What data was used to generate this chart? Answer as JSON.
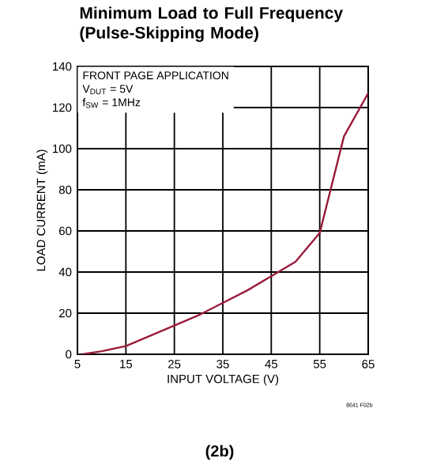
{
  "chart_data": {
    "type": "line",
    "title": "Minimum Load to Full Frequency (Pulse-Skipping Mode)",
    "xlabel": "INPUT VOLTAGE (V)",
    "ylabel": "LOAD CURRENT (mA)",
    "x": [
      6,
      10,
      15,
      20,
      25,
      30,
      35,
      40,
      45,
      50,
      55,
      60,
      65
    ],
    "series": [
      {
        "color": "#9b1b3a",
        "values": [
          0,
          1.5,
          4,
          9,
          14,
          19,
          25,
          31,
          38,
          45,
          59,
          106,
          127
        ]
      }
    ],
    "xlim": [
      5,
      65
    ],
    "ylim": [
      0,
      140
    ],
    "xticks": [
      5,
      15,
      25,
      35,
      45,
      55,
      65
    ],
    "yticks": [
      0,
      20,
      40,
      60,
      80,
      100,
      120,
      140
    ],
    "grid": true,
    "marker": "none",
    "line_style": "solid",
    "annotations": [
      "FRONT PAGE APPLICATION",
      "V$_{DUT}$ = 5V",
      "f$_{SW}$ = 1MHz",
      "8641 F02b",
      "(2b)"
    ]
  }
}
